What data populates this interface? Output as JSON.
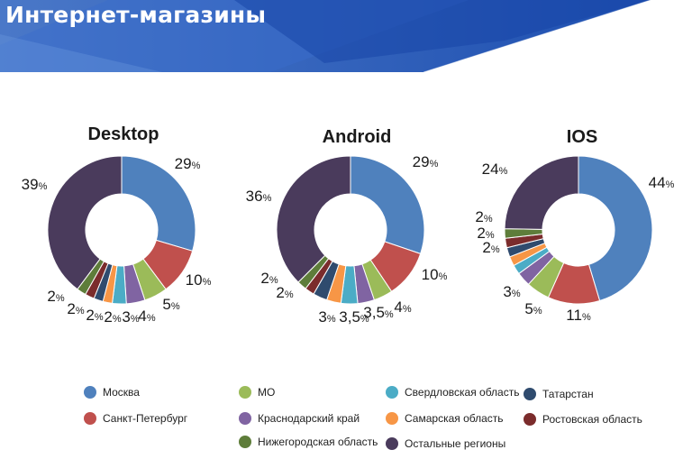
{
  "header": {
    "title": "Интернет-магазины"
  },
  "legend": {
    "items": [
      {
        "label": "Москва",
        "color": "#4f81bd"
      },
      {
        "label": "Санкт-Петербург",
        "color": "#c0504d"
      },
      {
        "label": "Нижегородская область",
        "color": "#5e7d3a"
      },
      {
        "label": "МО",
        "color": "#9bbb59"
      },
      {
        "label": "Краснодарский край",
        "color": "#8064a2"
      },
      {
        "label": "Свердловская область",
        "color": "#4bacc6"
      },
      {
        "label": "Самарская область",
        "color": "#f79646"
      },
      {
        "label": "Остальные регионы",
        "color": "#4a3b5c"
      },
      {
        "label": "Татарстан",
        "color": "#2f4b6e"
      },
      {
        "label": "Ростовская область",
        "color": "#7b2c2c"
      }
    ]
  },
  "chart_data": [
    {
      "type": "pie",
      "title": "Desktop",
      "unit": "%",
      "slices": [
        {
          "category": "Москва",
          "value": 29,
          "label": "29"
        },
        {
          "category": "Санкт-Петербург",
          "value": 10,
          "label": "10"
        },
        {
          "category": "МО",
          "value": 5,
          "label": "5"
        },
        {
          "category": "Краснодарский край",
          "value": 4,
          "label": "4"
        },
        {
          "category": "Свердловская область",
          "value": 3,
          "label": "3"
        },
        {
          "category": "Самарская область",
          "value": 2,
          "label": "2"
        },
        {
          "category": "Татарстан",
          "value": 2,
          "label": "2"
        },
        {
          "category": "Ростовская область",
          "value": 2,
          "label": "2"
        },
        {
          "category": "Нижегородская область",
          "value": 2,
          "label": "2"
        },
        {
          "category": "Остальные регионы",
          "value": 39,
          "label": "39"
        }
      ]
    },
    {
      "type": "pie",
      "title": "Android",
      "unit": "%",
      "slices": [
        {
          "category": "Москва",
          "value": 29,
          "label": "29"
        },
        {
          "category": "Санкт-Петербург",
          "value": 10,
          "label": "10"
        },
        {
          "category": "МО",
          "value": 4,
          "label": "4"
        },
        {
          "category": "Краснодарский край",
          "value": 3.5,
          "label": "3,5"
        },
        {
          "category": "Свердловская область",
          "value": 3.5,
          "label": "3,5"
        },
        {
          "category": "Самарская область",
          "value": 3,
          "label": "3"
        },
        {
          "category": "Татарстан",
          "value": 3,
          "label": ""
        },
        {
          "category": "Ростовская область",
          "value": 2,
          "label": "2"
        },
        {
          "category": "Нижегородская область",
          "value": 2,
          "label": "2"
        },
        {
          "category": "Остальные регионы",
          "value": 36,
          "label": "36"
        }
      ]
    },
    {
      "type": "pie",
      "title": "IOS",
      "unit": "%",
      "slices": [
        {
          "category": "Москва",
          "value": 44,
          "label": "44"
        },
        {
          "category": "Санкт-Петербург",
          "value": 11,
          "label": "11"
        },
        {
          "category": "МО",
          "value": 5,
          "label": "5"
        },
        {
          "category": "Краснодарский край",
          "value": 3,
          "label": "3"
        },
        {
          "category": "Свердловская область",
          "value": 2,
          "label": "2"
        },
        {
          "category": "Самарская область",
          "value": 2,
          "label": "2"
        },
        {
          "category": "Татарстан",
          "value": 2,
          "label": "2"
        },
        {
          "category": "Ростовская область",
          "value": 2,
          "label": "2"
        },
        {
          "category": "Нижегородская область",
          "value": 2,
          "label": ""
        },
        {
          "category": "Остальные регионы",
          "value": 24,
          "label": "24"
        }
      ]
    }
  ]
}
